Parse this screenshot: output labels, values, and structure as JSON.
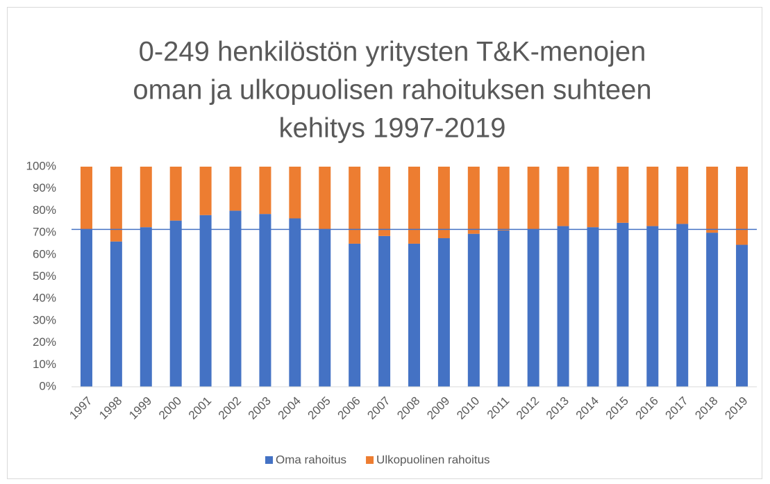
{
  "chart_data": {
    "type": "stacked_bar",
    "title": [
      "0-249 henkilöstön yritysten T&K-menojen",
      "oman ja ulkopuolisen rahoituksen suhteen",
      "kehitys 1997-2019"
    ],
    "categories": [
      "1997",
      "1998",
      "1999",
      "2000",
      "2001",
      "2002",
      "2003",
      "2004",
      "2005",
      "2006",
      "2007",
      "2008",
      "2009",
      "2010",
      "2011",
      "2012",
      "2013",
      "2014",
      "2015",
      "2016",
      "2017",
      "2018",
      "2019"
    ],
    "series": [
      {
        "name": "Oma rahoitus",
        "color": "#4472c4",
        "values": [
          71.5,
          66,
          72.5,
          75.5,
          78,
          80,
          78.5,
          76.5,
          71.5,
          65,
          68.5,
          65,
          67.5,
          69.5,
          71,
          71.5,
          73,
          72.5,
          74.5,
          73,
          74,
          70,
          64.5
        ]
      },
      {
        "name": "Ulkopuolinen rahoitus",
        "color": "#ed7d31",
        "values": [
          28.5,
          34,
          27.5,
          24.5,
          22,
          20,
          21.5,
          23.5,
          28.5,
          35,
          31.5,
          35,
          32.5,
          30.5,
          29,
          28.5,
          27,
          27.5,
          25.5,
          27,
          26,
          30,
          35.5
        ]
      }
    ],
    "reference_line": {
      "value": 71.5,
      "color": "#4472c4"
    },
    "ylim": [
      0,
      100
    ],
    "yticks": [
      {
        "value": 0,
        "label": "0%"
      },
      {
        "value": 10,
        "label": "10%"
      },
      {
        "value": 20,
        "label": "20%"
      },
      {
        "value": 30,
        "label": "30%"
      },
      {
        "value": 40,
        "label": "40%"
      },
      {
        "value": 50,
        "label": "50%"
      },
      {
        "value": 60,
        "label": "60%"
      },
      {
        "value": 70,
        "label": "70%"
      },
      {
        "value": 80,
        "label": "80%"
      },
      {
        "value": 90,
        "label": "90%"
      },
      {
        "value": 100,
        "label": "100%"
      }
    ],
    "grid": false,
    "legend": "bottom"
  }
}
